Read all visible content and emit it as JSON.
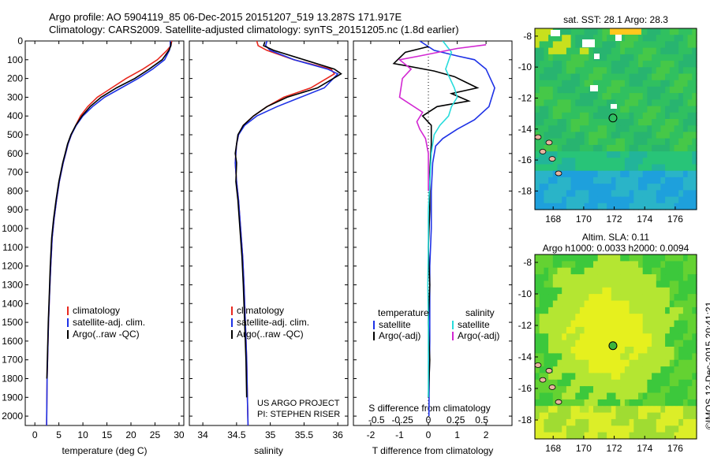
{
  "header": {
    "title_line1": "Argo profile: AO 5904119_85 06-Dec-2015 20151207_519 13.287S 171.917E",
    "title_line2": "Climatology: CARS2009. Satellite-adjusted climatology: synTS_20151205.nc (1.8d earlier)"
  },
  "sst_map": {
    "title": "sat. SST: 28.1  Argo: 28.3",
    "lat_ticks": [
      "-8",
      "-10",
      "-12",
      "-14",
      "-16",
      "-18"
    ],
    "lon_ticks": [
      "168",
      "170",
      "172",
      "174",
      "176"
    ]
  },
  "sla_map": {
    "title1": "Altim. SLA: 0.11",
    "title2": "Argo h1000: 0.0033 h2000: 0.0094",
    "lat_ticks": [
      "-8",
      "-10",
      "-12",
      "-14",
      "-16",
      "-18"
    ],
    "lon_ticks": [
      "168",
      "170",
      "172",
      "174",
      "176"
    ]
  },
  "credits": {
    "imos": "©IMOS 12-Dec-2015 20:41:21",
    "project": "US ARGO PROJECT",
    "pi": "PI: STEPHEN RISER"
  },
  "colors": {
    "climatology": "#e8281e",
    "satellite": "#1e32e6",
    "argo": "#000000",
    "sal_satellite": "#28dcdc",
    "sal_argo": "#d228d2"
  },
  "chart_data": [
    {
      "type": "line",
      "xlabel": "temperature (deg C)",
      "ylabel": "",
      "xlim": [
        -2,
        31
      ],
      "ylim": [
        2050,
        0
      ],
      "xticks": [
        0,
        5,
        10,
        15,
        20,
        25,
        30
      ],
      "yticks": [
        0,
        100,
        200,
        300,
        400,
        500,
        600,
        700,
        800,
        900,
        1000,
        1100,
        1200,
        1300,
        1400,
        1500,
        1600,
        1700,
        1800,
        1900,
        2000
      ],
      "legend": [
        "climatology",
        "satellite-adj. clim.",
        "Argo(..raw -QC)"
      ],
      "series": [
        {
          "name": "climatology",
          "color": "#e8281e",
          "x": [
            28.5,
            28.3,
            27.5,
            25.5,
            22.5,
            19,
            16,
            13,
            11,
            9.5,
            8.5,
            7.6,
            6.9,
            6.4,
            5.9,
            5.1,
            4.5,
            4,
            3.6,
            3.3,
            3.05,
            2.85,
            2.7,
            2.55,
            2.45
          ],
          "y": [
            0,
            25,
            50,
            100,
            150,
            200,
            250,
            300,
            350,
            400,
            450,
            500,
            550,
            600,
            650,
            750,
            850,
            950,
            1050,
            1200,
            1350,
            1500,
            1650,
            1800,
            2050
          ]
        },
        {
          "name": "satellite-adj. clim.",
          "color": "#1e32e6",
          "x": [
            28.2,
            28.2,
            28,
            27,
            24.5,
            21.5,
            18,
            14.5,
            12,
            10,
            8.6,
            7.6,
            6.9,
            6.4,
            5.9,
            5.1,
            4.5,
            4,
            3.6,
            3.3,
            3.05,
            2.85,
            2.7,
            2.55,
            2.45
          ],
          "y": [
            0,
            25,
            50,
            100,
            150,
            200,
            250,
            300,
            350,
            400,
            450,
            500,
            550,
            600,
            650,
            750,
            850,
            950,
            1050,
            1200,
            1350,
            1500,
            1650,
            1800,
            2050
          ]
        },
        {
          "name": "Argo(..raw -QC)",
          "color": "#000000",
          "x": [
            28.3,
            28.3,
            27.9,
            26.5,
            23.8,
            20.8,
            17,
            13.8,
            11.5,
            9.8,
            8.5,
            7.5,
            6.8,
            6.3,
            5.8,
            5,
            4.4,
            3.9,
            3.5,
            3.2,
            3,
            2.8,
            2.65,
            2.5
          ],
          "y": [
            5,
            25,
            50,
            100,
            150,
            200,
            250,
            300,
            350,
            400,
            450,
            500,
            550,
            600,
            650,
            750,
            850,
            950,
            1050,
            1200,
            1350,
            1500,
            1650,
            1800
          ]
        }
      ]
    },
    {
      "type": "line",
      "xlabel": "salinity",
      "ylabel": "",
      "xlim": [
        33.8,
        36.15
      ],
      "ylim": [
        2050,
        0
      ],
      "xticks": [
        34,
        34.5,
        35,
        35.5,
        36
      ],
      "legend": [
        "climatology",
        "satellite-adj. clim.",
        "Argo(..raw -QC)"
      ],
      "series": [
        {
          "name": "climatology",
          "color": "#e8281e",
          "x": [
            34.8,
            34.82,
            34.95,
            35.35,
            35.9,
            35.95,
            35.6,
            35.2,
            34.95,
            34.75,
            34.6,
            34.53,
            34.5,
            34.49,
            34.48,
            34.5,
            34.53,
            34.56,
            34.59,
            34.61,
            34.63,
            34.65,
            34.66,
            34.67
          ],
          "y": [
            0,
            25,
            50,
            100,
            150,
            175,
            250,
            300,
            350,
            400,
            450,
            500,
            550,
            600,
            650,
            750,
            850,
            1000,
            1150,
            1300,
            1500,
            1700,
            1900,
            2050
          ]
        },
        {
          "name": "satellite-adj. clim.",
          "color": "#1e32e6",
          "x": [
            34.95,
            34.93,
            35,
            35.35,
            35.85,
            36,
            35.8,
            35.45,
            35.1,
            34.8,
            34.62,
            34.53,
            34.5,
            34.49,
            34.48,
            34.5,
            34.53,
            34.56,
            34.59,
            34.61,
            34.63,
            34.65,
            34.66,
            34.67
          ],
          "y": [
            0,
            25,
            50,
            100,
            150,
            175,
            250,
            300,
            350,
            400,
            450,
            500,
            550,
            600,
            650,
            750,
            850,
            1000,
            1150,
            1300,
            1500,
            1700,
            1900,
            2050
          ]
        },
        {
          "name": "Argo(..raw -QC)",
          "color": "#000000",
          "x": [
            34.92,
            34.9,
            35.05,
            35.5,
            35.95,
            36.05,
            35.7,
            35.25,
            34.95,
            34.75,
            34.6,
            34.52,
            34.5,
            34.48,
            34.5,
            34.49,
            34.52,
            34.55,
            34.58,
            34.6,
            34.62,
            34.64,
            34.65
          ],
          "y": [
            5,
            25,
            50,
            100,
            150,
            175,
            250,
            300,
            350,
            400,
            450,
            500,
            550,
            600,
            650,
            750,
            850,
            1000,
            1150,
            1300,
            1500,
            1700,
            1900
          ]
        }
      ]
    },
    {
      "type": "line",
      "xlabel": "T difference from climatology",
      "xlabel_top": "S difference from climatology",
      "ylabel": "",
      "xlim": [
        -2.6,
        2.9
      ],
      "ylim": [
        2050,
        0
      ],
      "xticks": [
        -2,
        -1,
        0,
        1,
        2
      ],
      "xticks_top_labels": [
        "-0.5",
        "-0.25",
        "0",
        "0.25",
        "0.5"
      ],
      "legend_groups": {
        "temperature": [
          "satellite",
          "Argo(-adj)"
        ],
        "salinity": [
          "satellite",
          "Argo(-adj)"
        ]
      },
      "series": [
        {
          "name": "temperature satellite",
          "color": "#1e32e6",
          "x": [
            -0.3,
            0.2,
            1.0,
            1.6,
            2.0,
            2.3,
            2.1,
            1.6,
            1.0,
            0.5,
            0.25,
            0.15,
            0.1,
            0.1,
            0.05,
            0.05,
            0.05,
            0.03,
            0.02
          ],
          "y": [
            0,
            50,
            80,
            100,
            150,
            250,
            350,
            420,
            470,
            520,
            560,
            650,
            800,
            1000,
            1200,
            1400,
            1600,
            1800,
            2000
          ]
        },
        {
          "name": "temperature Argo(-adj)",
          "color": "#000000",
          "x": [
            0,
            -0.8,
            -1.2,
            0.2,
            0.9,
            1.3,
            1.7,
            0.8,
            1.4,
            0.3,
            -0.2,
            0.1,
            0.1,
            0.05,
            0.05,
            0.0,
            0.05,
            0.0,
            0.05,
            0.0
          ],
          "y": [
            30,
            60,
            120,
            160,
            190,
            220,
            250,
            280,
            320,
            350,
            400,
            450,
            550,
            700,
            900,
            1100,
            1300,
            1500,
            1700,
            1900
          ]
        },
        {
          "name": "salinity satellite",
          "color": "#28dcdc",
          "x": [
            0.5,
            0.8,
            0.6,
            0.9,
            1.0,
            0.8,
            0.7,
            0.4,
            0.2,
            0.1,
            0.05,
            0.0,
            0.0,
            -0.02,
            0.0,
            0.0,
            0.0
          ],
          "y": [
            0,
            60,
            150,
            250,
            300,
            350,
            400,
            450,
            500,
            600,
            750,
            900,
            1100,
            1300,
            1500,
            1700,
            1900
          ]
        },
        {
          "name": "salinity Argo(-adj)",
          "color": "#d228d2",
          "x": [
            2.0,
            1.0,
            -0.3,
            -1.0,
            -0.6,
            -0.9,
            -1.0,
            -0.2,
            -0.4,
            -0.3,
            -0.1,
            0.0,
            0.0,
            0.0
          ],
          "y": [
            20,
            40,
            80,
            100,
            150,
            200,
            300,
            380,
            430,
            470,
            520,
            600,
            700,
            800
          ]
        }
      ]
    }
  ]
}
